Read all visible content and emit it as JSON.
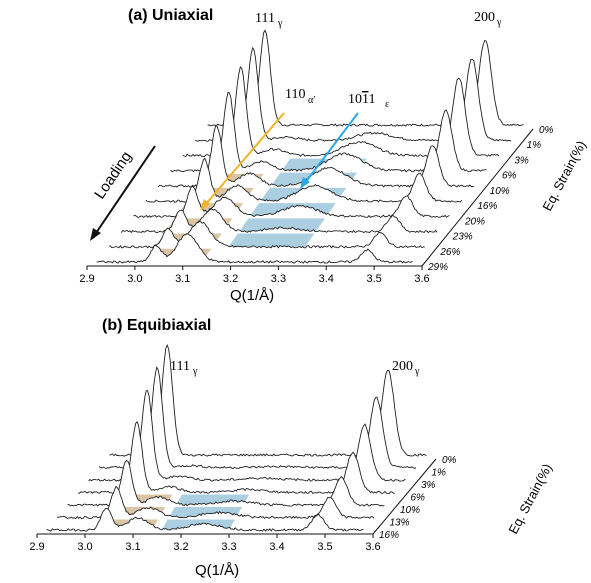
{
  "colors": {
    "trace": "#202020",
    "alpha_band": "#cdb287",
    "epsilon_band": "#8fbfd6",
    "alpha_arrow": "#f0b429",
    "epsilon_arrow": "#29a9e6"
  },
  "chart_data": [
    {
      "type": "line",
      "panel_label": "(a) Uniaxial",
      "xlabel": "Q(1/Å)",
      "ylabel": "Eq. Strain(%)",
      "xlim": [
        2.9,
        3.6
      ],
      "x_ticks": [
        "2.9",
        "3.0",
        "3.1",
        "3.2",
        "3.3",
        "3.4",
        "3.5",
        "3.6"
      ],
      "strain_labels": [
        "0%",
        "1%",
        "3%",
        "6%",
        "10%",
        "16%",
        "20%",
        "23%",
        "26%",
        "29%"
      ],
      "loading_label": "Loading",
      "peaks": [
        {
          "name": "111",
          "sub": "γ",
          "Q": 3.04
        },
        {
          "name": "200",
          "sub": "γ",
          "Q": 3.5
        },
        {
          "name": "110",
          "sub": "α′",
          "Q": 3.11
        },
        {
          "name": "1011",
          "sub": "ε",
          "Q": 3.3
        }
      ]
    },
    {
      "type": "line",
      "panel_label": "(b) Equibiaxial",
      "xlabel": "Q(1/Å)",
      "ylabel": "Eq. Strain(%)",
      "xlim": [
        2.9,
        3.6
      ],
      "x_ticks": [
        "2.9",
        "3.0",
        "3.1",
        "3.2",
        "3.3",
        "3.4",
        "3.5",
        "3.6"
      ],
      "strain_labels": [
        "0%",
        "1%",
        "3%",
        "6%",
        "10%",
        "13%",
        "16%"
      ],
      "peaks": [
        {
          "name": "111",
          "sub": "γ",
          "Q": 3.04
        },
        {
          "name": "200",
          "sub": "γ",
          "Q": 3.5
        }
      ]
    }
  ]
}
